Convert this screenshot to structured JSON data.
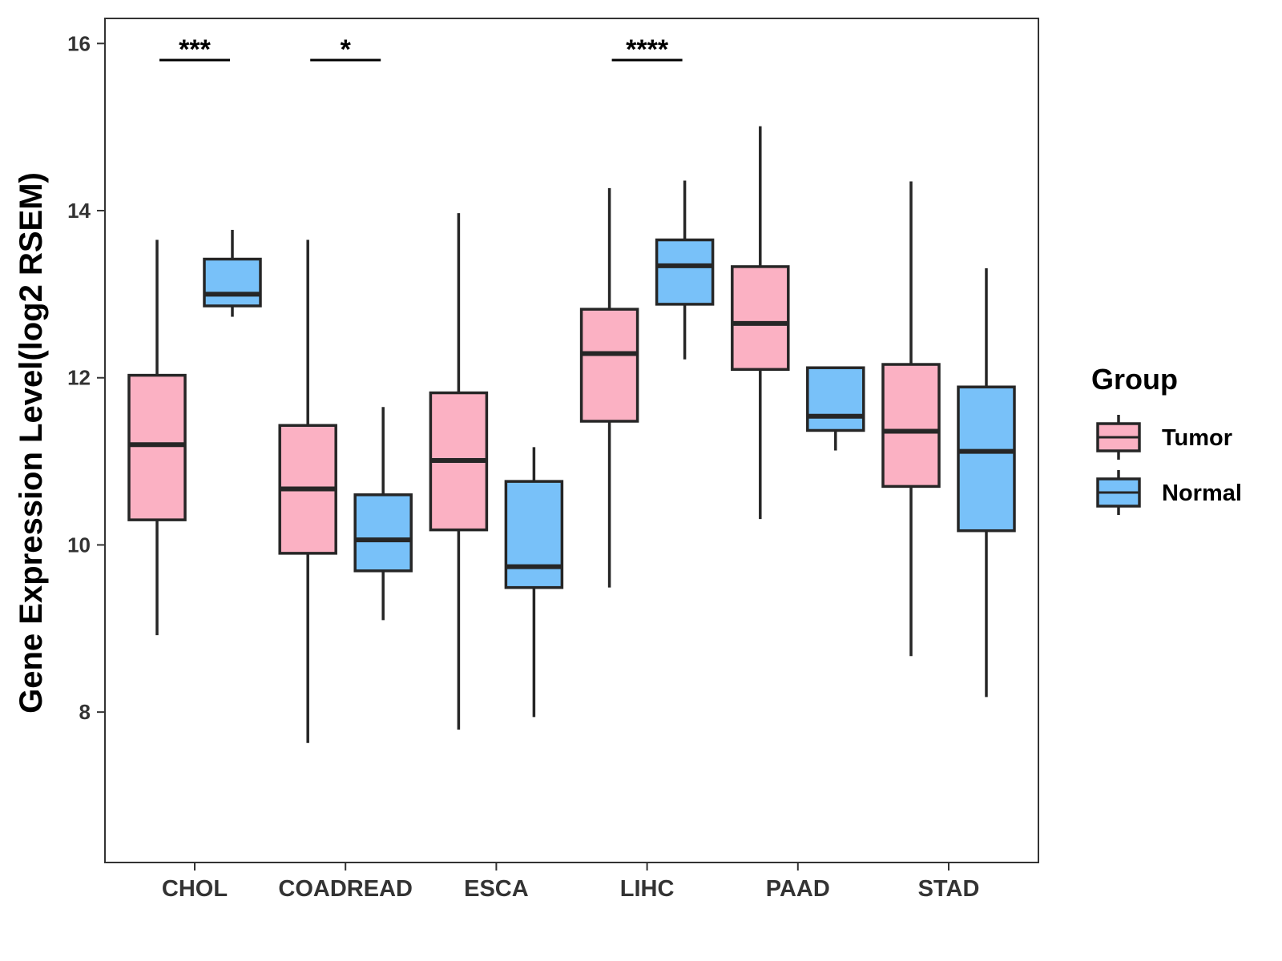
{
  "chart_data": {
    "type": "boxplot",
    "title": "",
    "xlabel": "",
    "ylabel": "Gene Expression Level(log2 RSEM)",
    "ylim": [
      6.2,
      16.3
    ],
    "yticks": [
      8,
      10,
      12,
      14,
      16
    ],
    "categories": [
      "CHOL",
      "COADREAD",
      "ESCA",
      "LIHC",
      "PAAD",
      "STAD"
    ],
    "legend": {
      "title": "Group",
      "position": "right",
      "entries": [
        {
          "name": "Tumor",
          "color": "#FBB1C3"
        },
        {
          "name": "Normal",
          "color": "#78C1F9"
        }
      ]
    },
    "series": [
      {
        "name": "Tumor",
        "color": "#FBB1C3",
        "boxes": [
          {
            "category": "CHOL",
            "min": 8.92,
            "q1": 10.3,
            "median": 11.2,
            "q3": 12.03,
            "max": 13.65
          },
          {
            "category": "COADREAD",
            "min": 7.63,
            "q1": 9.9,
            "median": 10.67,
            "q3": 11.43,
            "max": 13.65
          },
          {
            "category": "ESCA",
            "min": 7.79,
            "q1": 10.18,
            "median": 11.01,
            "q3": 11.82,
            "max": 13.97
          },
          {
            "category": "LIHC",
            "min": 9.49,
            "q1": 11.48,
            "median": 12.29,
            "q3": 12.82,
            "max": 14.27
          },
          {
            "category": "PAAD",
            "min": 10.31,
            "q1": 12.1,
            "median": 12.65,
            "q3": 13.33,
            "max": 15.01
          },
          {
            "category": "STAD",
            "min": 8.67,
            "q1": 10.7,
            "median": 11.36,
            "q3": 12.16,
            "max": 14.35
          }
        ]
      },
      {
        "name": "Normal",
        "color": "#78C1F9",
        "boxes": [
          {
            "category": "CHOL",
            "min": 12.73,
            "q1": 12.86,
            "median": 13.0,
            "q3": 13.42,
            "max": 13.77
          },
          {
            "category": "COADREAD",
            "min": 9.1,
            "q1": 9.69,
            "median": 10.06,
            "q3": 10.6,
            "max": 11.65
          },
          {
            "category": "ESCA",
            "min": 7.94,
            "q1": 9.49,
            "median": 9.74,
            "q3": 10.76,
            "max": 11.17
          },
          {
            "category": "LIHC",
            "min": 12.22,
            "q1": 12.88,
            "median": 13.34,
            "q3": 13.65,
            "max": 14.36
          },
          {
            "category": "PAAD",
            "min": 11.13,
            "q1": 11.37,
            "median": 11.54,
            "q3": 12.12,
            "max": 12.12
          },
          {
            "category": "STAD",
            "min": 8.18,
            "q1": 10.17,
            "median": 11.12,
            "q3": 11.89,
            "max": 13.31
          }
        ]
      }
    ],
    "significance": [
      {
        "category": "CHOL",
        "label": "***"
      },
      {
        "category": "COADREAD",
        "label": "*"
      },
      {
        "category": "LIHC",
        "label": "****"
      }
    ]
  }
}
